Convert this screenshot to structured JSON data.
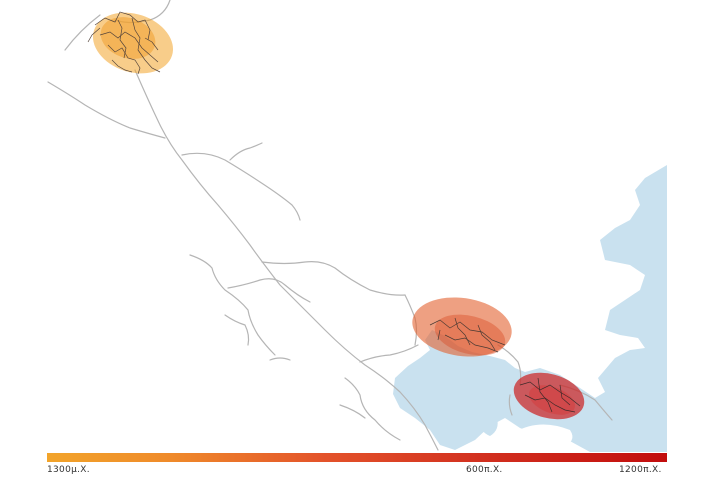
{
  "legend": {
    "start_label": "1300μ.Χ.",
    "mid_label": "600π.Χ.",
    "end_label": "1200π.Χ.",
    "gradient_colors": [
      "#f2a42a",
      "#e3522a",
      "#c20d0d"
    ]
  },
  "colors": {
    "water": "#c9e1ef",
    "roads": "#b5b5b5",
    "settlement_orange": "#f2a42a",
    "settlement_red_orange": "#e3602f",
    "settlement_red": "#cc1f1f"
  }
}
